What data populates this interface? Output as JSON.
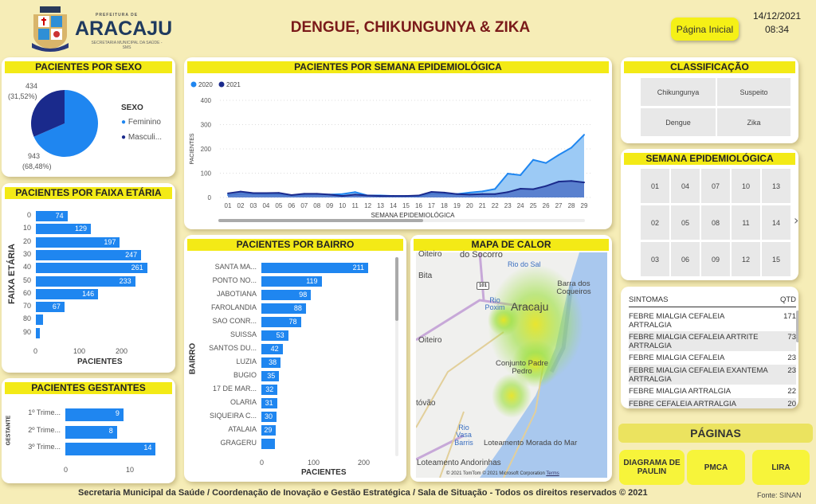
{
  "header": {
    "logo_top": "PREFEITURA DE",
    "logo_name": "ARACAJU",
    "logo_sub": "SECRETARIA MUNICIPAL DA SAÚDE - SMS",
    "title": "DENGUE, CHIKUNGUNYA & ZIKA",
    "home_button": "Página Inicial",
    "date": "14/12/2021",
    "time": "08:34"
  },
  "colors": {
    "bg": "#f6edb7",
    "header_bar": "#f3ea16",
    "bar": "#1f86f0",
    "series2020": "#1f86f0",
    "series2021": "#1a2a8c",
    "title": "#7a1a1a"
  },
  "sexo": {
    "title": "PACIENTES POR SEXO",
    "legend_title": "SEXO",
    "masc_label": "434",
    "masc_pct": "(31,52%)",
    "fem_label": "943",
    "fem_pct": "(68,48%)",
    "legend": [
      "Feminino",
      "Masculi..."
    ]
  },
  "faixa": {
    "title": "PACIENTES POR FAIXA ETÁRIA",
    "ylabel": "FAIXA ETÁRIA",
    "xlabel": "PACIENTES",
    "ticks": [
      "0",
      "100",
      "200"
    ]
  },
  "gestantes": {
    "title": "PACIENTES GESTANTES",
    "ylabel": "GESTANTE",
    "ticks": [
      "0",
      "10"
    ]
  },
  "semana_chart": {
    "title": "PACIENTES POR SEMANA EPIDEMIOLÓGICA"
  },
  "bairro": {
    "title": "PACIENTES POR BAIRRO",
    "ylabel": "BAIRRO",
    "xlabel": "PACIENTES",
    "ticks": [
      "0",
      "100",
      "200"
    ]
  },
  "mapa": {
    "title": "MAPA DE CALOR",
    "labels": [
      "Oiteiro",
      "do Socorro",
      "Rio do Sal",
      "Bita",
      "Barra dos Coqueiros",
      "Rio Poxim",
      "Aracaju",
      "Oiteiro",
      "Conjunto Padre Pedro",
      "tóvão",
      "Rio Vasa Barris",
      "Loteamento Morada do Mar",
      "Loteamento Andorinhas"
    ],
    "road": "101",
    "copyright": "© 2021 TomTom  © 2021 Microsoft Corporation",
    "terms": "Terms"
  },
  "classificacao": {
    "title": "CLASSIFICAÇÃO",
    "items": [
      "Chikungunya",
      "Suspeito",
      "Dengue",
      "Zika"
    ]
  },
  "semana_filter": {
    "title": "SEMANA EPIDEMIOLÓGICA",
    "items": [
      "01",
      "04",
      "07",
      "10",
      "13",
      "02",
      "05",
      "08",
      "11",
      "14",
      "03",
      "06",
      "09",
      "12",
      "15"
    ]
  },
  "sintomas": {
    "col1": "SINTOMAS",
    "col2": "QTD",
    "rows": [
      [
        "FEBRE MIALGIA CEFALEIA ARTRALGIA",
        "171"
      ],
      [
        "FEBRE MIALGIA CEFALEIA ARTRITE ARTRALGIA",
        "73"
      ],
      [
        "FEBRE MIALGIA CEFALEIA",
        "23"
      ],
      [
        "FEBRE MIALGIA CEFALEIA EXANTEMA ARTRALGIA",
        "23"
      ],
      [
        "FEBRE MIALGIA ARTRALGIA",
        "22"
      ],
      [
        "FEBRE CEFALEIA ARTRALGIA",
        "20"
      ]
    ]
  },
  "paginas": {
    "title": "PÁGINAS",
    "buttons": [
      "DIAGRAMA DE PAULIN",
      "PMCA",
      "LIRA"
    ]
  },
  "footer": {
    "text": "Secretaria Municipal da Saúde / Coordenação de Inovação e Gestão Estratégica / Sala de Situação  - Todos os direitos reservados © 2021",
    "source": "Fonte: SINAN"
  },
  "chart_data": [
    {
      "type": "pie",
      "title": "PACIENTES POR SEXO",
      "categories": [
        "Feminino",
        "Masculino"
      ],
      "values": [
        943,
        434
      ],
      "percent": [
        68.48,
        31.52
      ]
    },
    {
      "type": "area",
      "title": "PACIENTES POR SEMANA EPIDEMIOLÓGICA",
      "xlabel": "SEMANA EPIDEMIOLÓGICA",
      "ylabel": "PACIENTES",
      "ylim": [
        0,
        400
      ],
      "yticks": [
        "0",
        "100",
        "200",
        "300",
        "400"
      ],
      "x": [
        "01",
        "02",
        "03",
        "04",
        "05",
        "06",
        "07",
        "08",
        "09",
        "10",
        "11",
        "12",
        "13",
        "14",
        "15",
        "16",
        "17",
        "18",
        "19",
        "20",
        "21",
        "22",
        "23",
        "24",
        "25",
        "26",
        "27",
        "28",
        "29"
      ],
      "series": [
        {
          "name": "2020",
          "values": [
            10,
            15,
            14,
            12,
            12,
            8,
            10,
            12,
            12,
            14,
            22,
            8,
            8,
            6,
            6,
            4,
            15,
            14,
            14,
            20,
            25,
            35,
            98,
            92,
            155,
            142,
            175,
            205,
            258
          ]
        },
        {
          "name": "2021",
          "values": [
            17,
            24,
            18,
            18,
            19,
            10,
            15,
            15,
            12,
            6,
            12,
            8,
            6,
            6,
            6,
            8,
            23,
            20,
            14,
            12,
            14,
            14,
            22,
            36,
            34,
            47,
            65,
            68,
            62
          ]
        }
      ],
      "legend": "top-left"
    },
    {
      "type": "bar",
      "title": "PACIENTES POR FAIXA ETÁRIA",
      "categories": [
        "0",
        "10",
        "20",
        "30",
        "40",
        "50",
        "60",
        "70",
        "80",
        "90"
      ],
      "values": [
        74,
        129,
        197,
        247,
        261,
        233,
        146,
        67,
        17,
        2
      ],
      "labels": [
        "74",
        "129",
        "197",
        "247",
        "261",
        "233",
        "146",
        "67",
        "",
        ""
      ],
      "xlim": [
        0,
        270
      ]
    },
    {
      "type": "bar",
      "title": "PACIENTES GESTANTES",
      "categories": [
        "1º Trime...",
        "2º Trime...",
        "3º Trime..."
      ],
      "values": [
        9,
        8,
        14
      ],
      "labels": [
        "9",
        "8",
        "14"
      ]
    },
    {
      "type": "bar",
      "title": "PACIENTES POR BAIRRO",
      "categories": [
        "SANTA MA...",
        "PONTO NO...",
        "JABOTIANA",
        "FAROLANDIA",
        "SAO CONR...",
        "SUISSA",
        "SANTOS DU...",
        "LUZIA",
        "BUGIO",
        "17 DE MAR...",
        "OLARIA",
        "SIQUEIRA C...",
        "ATALAIA",
        "GRAGERU"
      ],
      "values": [
        211,
        119,
        98,
        88,
        78,
        53,
        42,
        38,
        35,
        32,
        31,
        30,
        29,
        27
      ],
      "labels": [
        "211",
        "119",
        "98",
        "88",
        "78",
        "53",
        "42",
        "38",
        "35",
        "32",
        "31",
        "30",
        "29",
        ""
      ]
    }
  ]
}
